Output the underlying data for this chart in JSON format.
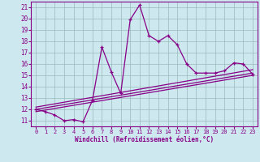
{
  "bg_color": "#cde8ee",
  "line_color": "#880088",
  "grid_color": "#99bbbb",
  "xlabel": "Windchill (Refroidissement éolien,°C)",
  "xlim": [
    -0.5,
    23.5
  ],
  "ylim": [
    10.5,
    21.5
  ],
  "yticks": [
    11,
    12,
    13,
    14,
    15,
    16,
    17,
    18,
    19,
    20,
    21
  ],
  "xticks": [
    0,
    1,
    2,
    3,
    4,
    5,
    6,
    7,
    8,
    9,
    10,
    11,
    12,
    13,
    14,
    15,
    16,
    17,
    18,
    19,
    20,
    21,
    22,
    23
  ],
  "series1_x": [
    0,
    1,
    2,
    3,
    4,
    5,
    6,
    7,
    8,
    9,
    10,
    11,
    12,
    13,
    14,
    15,
    16,
    17,
    18,
    19,
    20,
    21,
    22,
    23
  ],
  "series1_y": [
    12.0,
    11.8,
    11.5,
    11.0,
    11.1,
    10.9,
    12.8,
    17.5,
    15.3,
    13.4,
    19.9,
    21.2,
    18.5,
    18.0,
    18.5,
    17.7,
    16.0,
    15.2,
    15.2,
    15.2,
    15.4,
    16.1,
    16.0,
    15.1
  ],
  "line2_x": [
    0,
    23
  ],
  "line2_y": [
    12.0,
    15.2
  ],
  "line3_x": [
    0,
    23
  ],
  "line3_y": [
    11.8,
    15.0
  ],
  "line4_x": [
    0,
    23
  ],
  "line4_y": [
    12.2,
    15.5
  ]
}
